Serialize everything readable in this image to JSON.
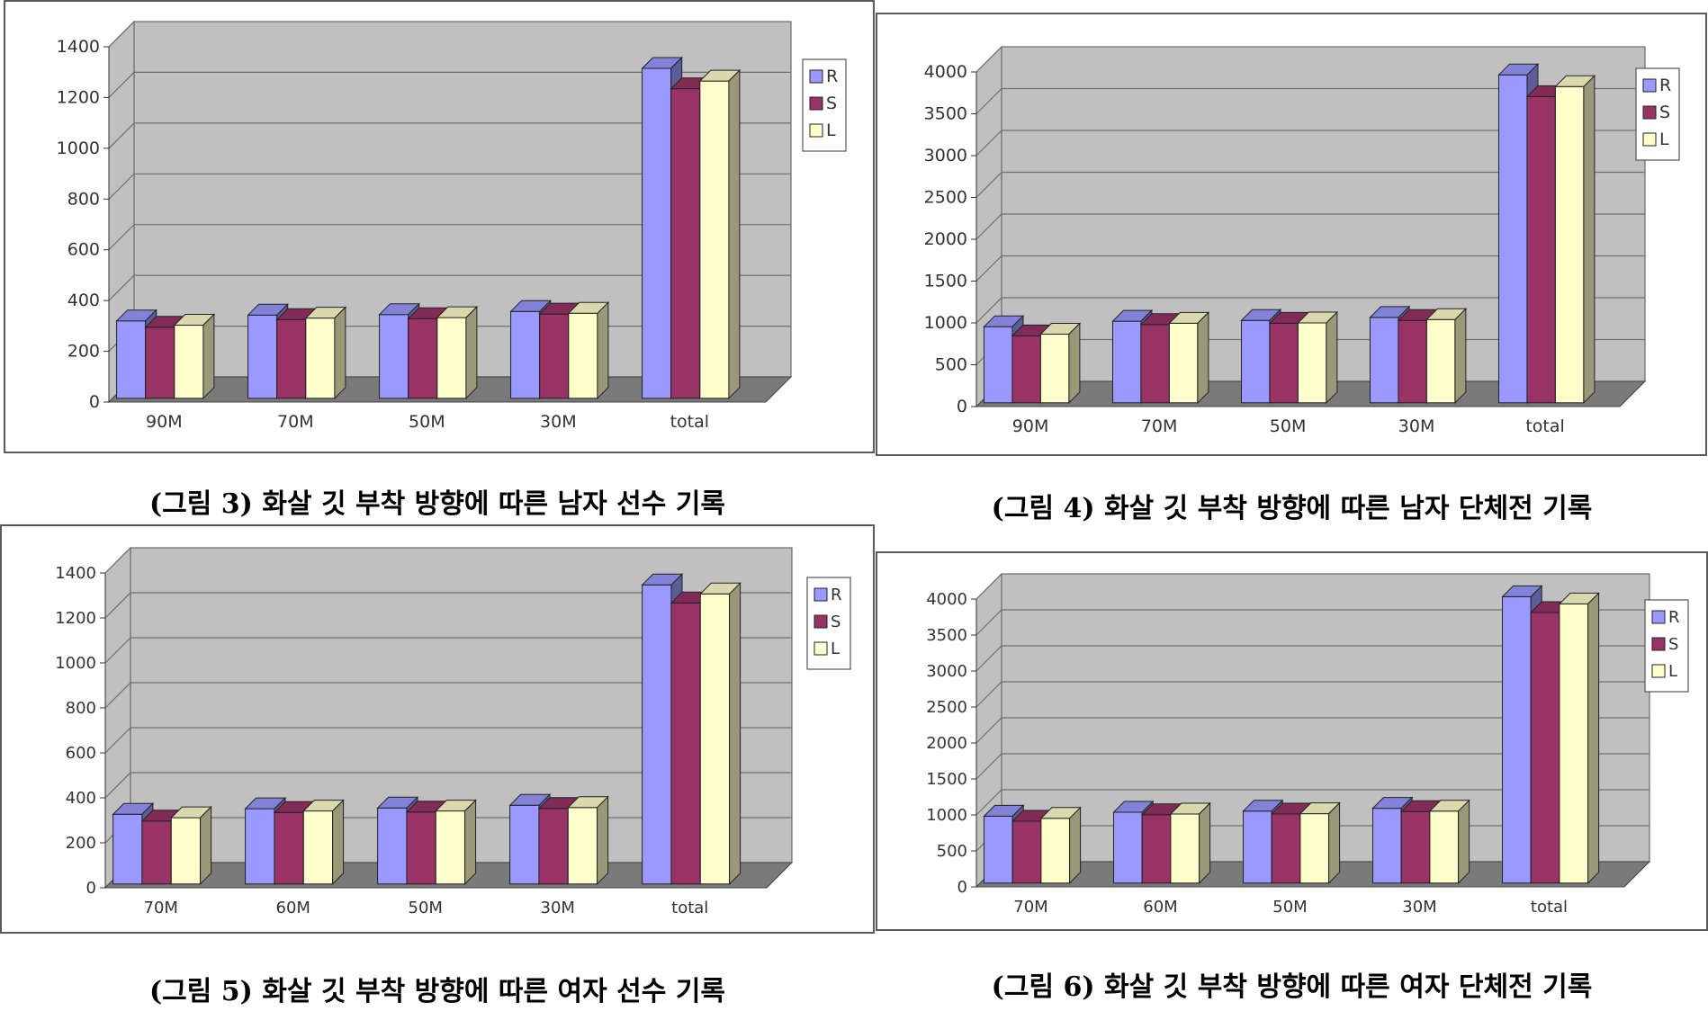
{
  "colors": {
    "wall": "#c0c0c0",
    "floor": "#7a7a7a",
    "grid": "#707070",
    "axis_text": "#333333",
    "R": "#9999ff",
    "S": "#993366",
    "L": "#ffffcc"
  },
  "chart_data": [
    {
      "type": "bar",
      "title": "(그림 3) 화살 깃 부착 방향에 따른 남자 선수 기록",
      "categories": [
        "90M",
        "70M",
        "50M",
        "30M",
        "total"
      ],
      "series": [
        {
          "name": "R",
          "values": [
            305,
            328,
            330,
            342,
            1300
          ]
        },
        {
          "name": "S",
          "values": [
            280,
            310,
            314,
            332,
            1220
          ]
        },
        {
          "name": "L",
          "values": [
            288,
            316,
            318,
            335,
            1250
          ]
        }
      ],
      "yticks": [
        "0",
        "200",
        "400",
        "600",
        "800",
        "1000",
        "1200",
        "1400"
      ],
      "ylim": [
        0,
        1400
      ],
      "legend": [
        "R",
        "S",
        "L"
      ],
      "legend_position": "right",
      "grid": true
    },
    {
      "type": "bar",
      "title": "(그림 4) 화살 깃 부착 방향에 따른 남자 단체전 기록",
      "categories": [
        "90M",
        "70M",
        "50M",
        "30M",
        "total"
      ],
      "series": [
        {
          "name": "R",
          "values": [
            910,
            975,
            985,
            1020,
            3920
          ]
        },
        {
          "name": "S",
          "values": [
            800,
            935,
            950,
            985,
            3660
          ]
        },
        {
          "name": "L",
          "values": [
            820,
            950,
            955,
            995,
            3780
          ]
        }
      ],
      "yticks": [
        "0",
        "500",
        "1000",
        "1500",
        "2000",
        "2500",
        "3000",
        "3500",
        "4000"
      ],
      "ylim": [
        0,
        4000
      ],
      "legend": [
        "R",
        "S",
        "L"
      ],
      "legend_position": "right",
      "grid": true
    },
    {
      "type": "bar",
      "title": "(그림 5) 화살 깃 부착 방향에 따른 여자 선수 기록",
      "categories": [
        "70M",
        "60M",
        "50M",
        "30M",
        "total"
      ],
      "series": [
        {
          "name": "R",
          "values": [
            310,
            335,
            338,
            350,
            1330
          ]
        },
        {
          "name": "S",
          "values": [
            280,
            318,
            320,
            336,
            1250
          ]
        },
        {
          "name": "L",
          "values": [
            295,
            325,
            325,
            340,
            1290
          ]
        }
      ],
      "yticks": [
        "0",
        "200",
        "400",
        "600",
        "800",
        "1000",
        "1200",
        "1400"
      ],
      "ylim": [
        0,
        1400
      ],
      "legend": [
        "R",
        "S",
        "L"
      ],
      "legend_position": "right",
      "grid": true
    },
    {
      "type": "bar",
      "title": "(그림 6) 화살 깃 부착 방향에 따른 여자 단체전 기록",
      "categories": [
        "70M",
        "60M",
        "50M",
        "30M",
        "total"
      ],
      "series": [
        {
          "name": "R",
          "values": [
            930,
            985,
            1000,
            1040,
            3980
          ]
        },
        {
          "name": "S",
          "values": [
            860,
            950,
            960,
            995,
            3760
          ]
        },
        {
          "name": "L",
          "values": [
            900,
            960,
            965,
            1000,
            3880
          ]
        }
      ],
      "yticks": [
        "0",
        "500",
        "1000",
        "1500",
        "2000",
        "2500",
        "3000",
        "3500",
        "4000"
      ],
      "ylim": [
        0,
        4000
      ],
      "legend": [
        "R",
        "S",
        "L"
      ],
      "legend_position": "right",
      "grid": true
    }
  ]
}
